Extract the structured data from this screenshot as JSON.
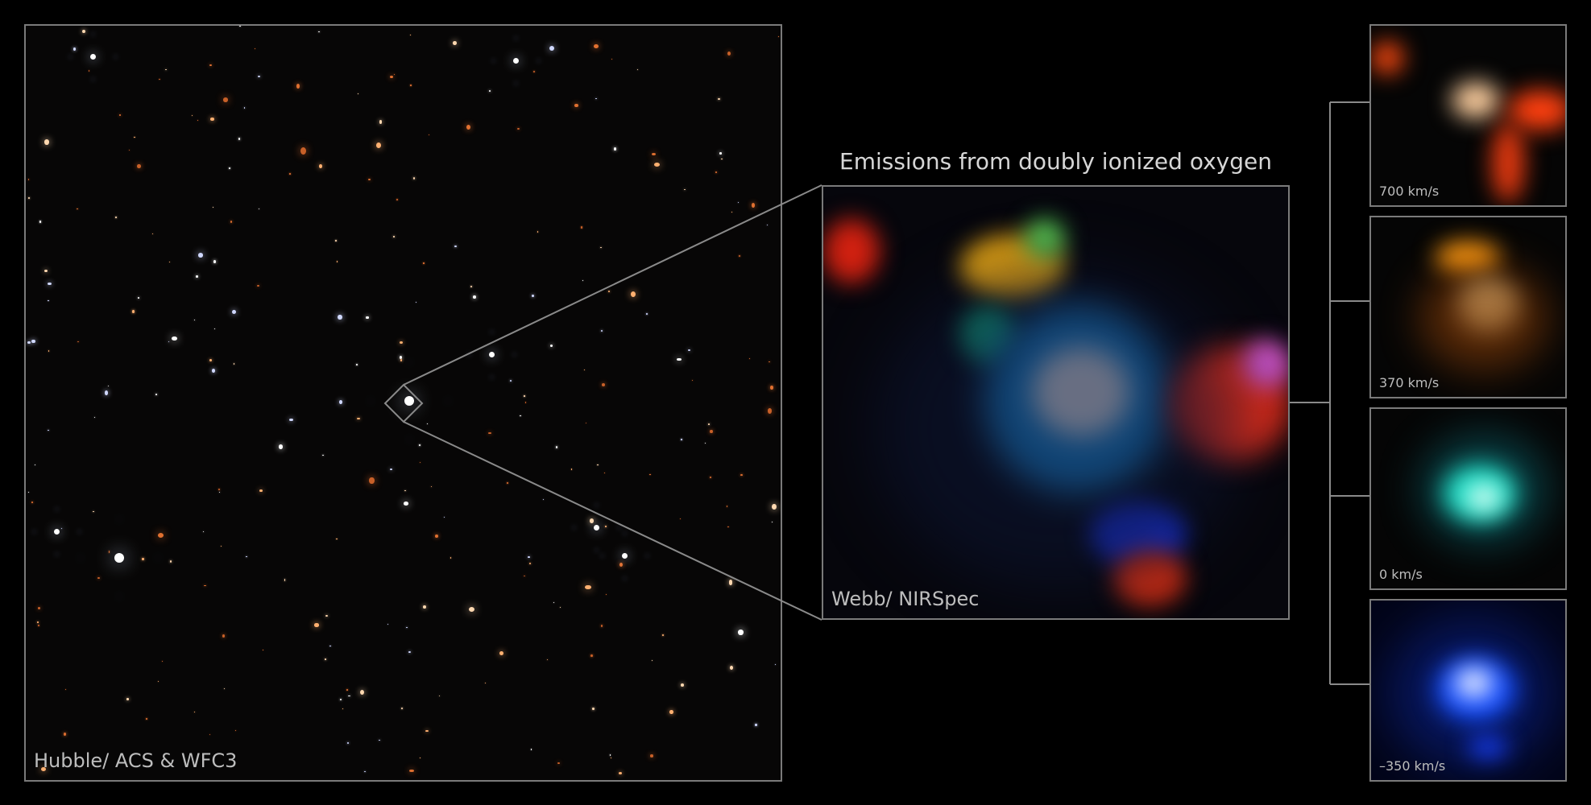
{
  "hubble_panel": {
    "label": "Hubble/ ACS & WFC3"
  },
  "webb_panel": {
    "title": "Emissions from doubly ionized oxygen",
    "label": "Webb/ NIRSpec"
  },
  "velocity_panels": [
    {
      "label": "700 km/s",
      "color": "#ff4a10"
    },
    {
      "label": "370 km/s",
      "color": "#ff9a10"
    },
    {
      "label": "0 km/s",
      "color": "#20e0c8"
    },
    {
      "label": "–350 km/s",
      "color": "#1850ff"
    }
  ],
  "colors": {
    "frame": "#7a7a7a",
    "background": "#000000"
  }
}
